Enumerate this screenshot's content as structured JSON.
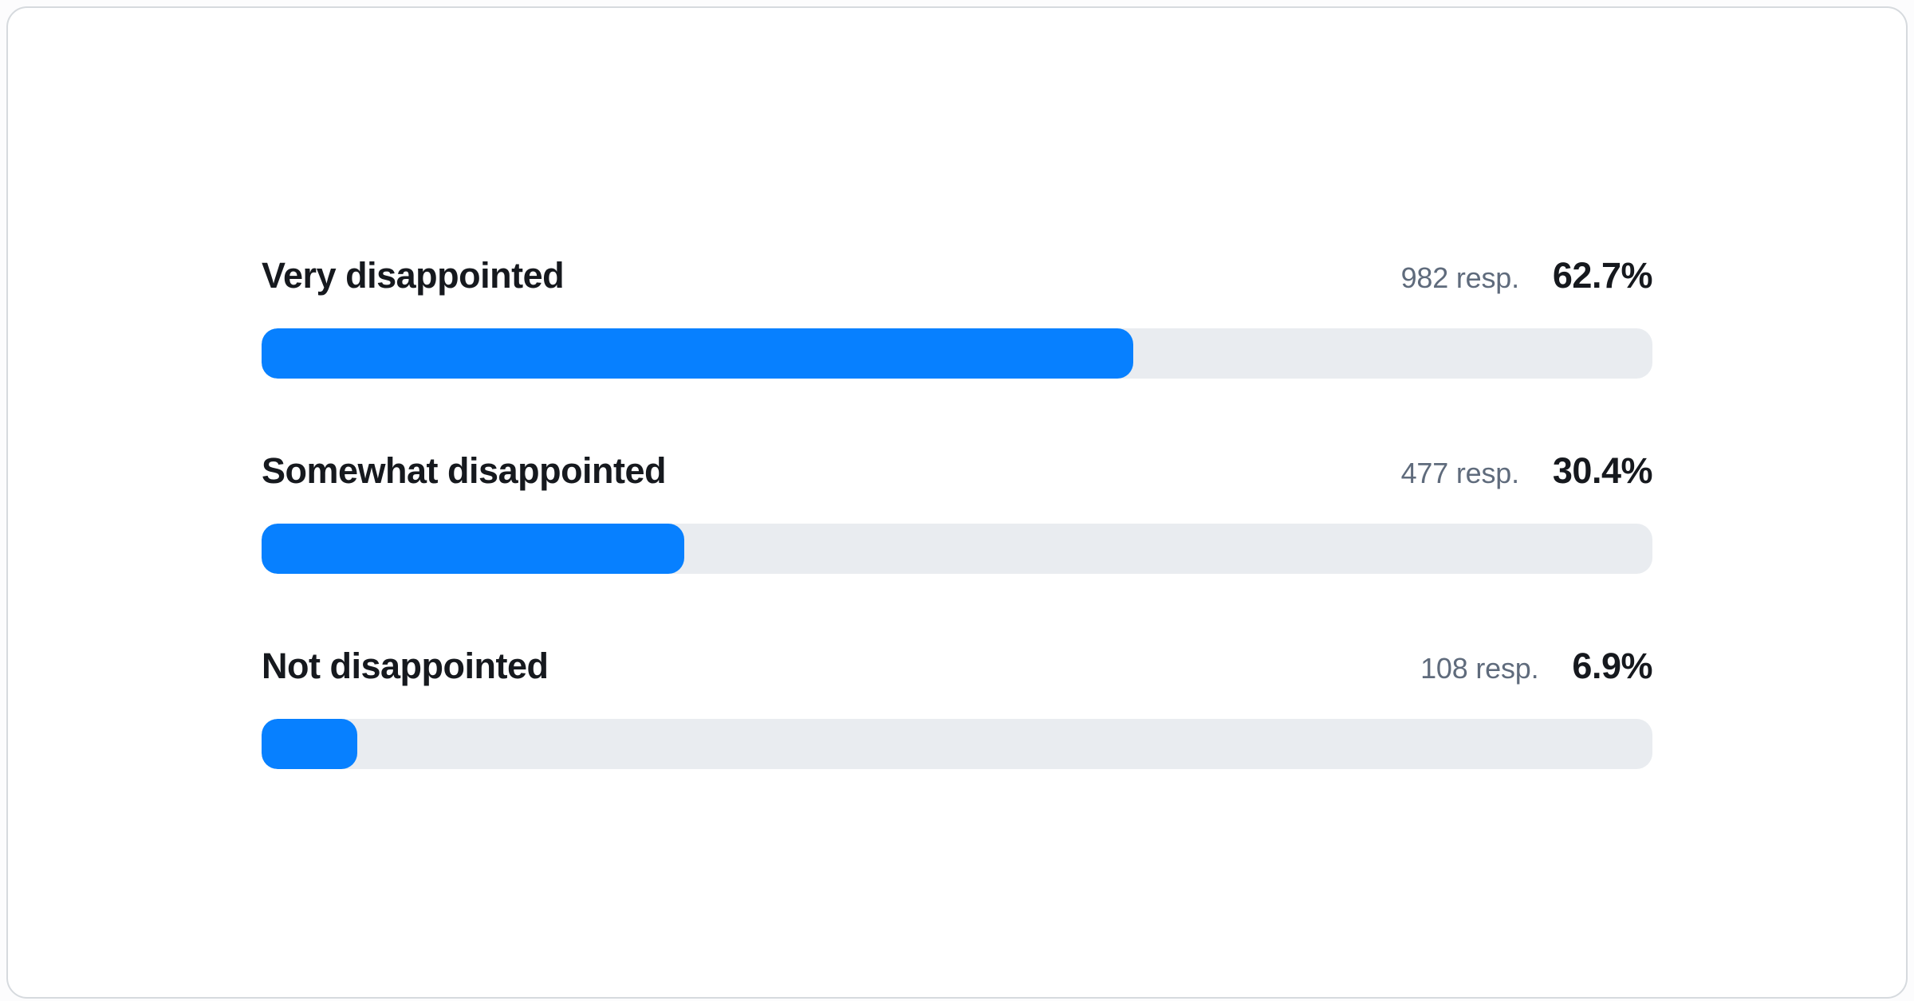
{
  "colors": {
    "accent": "#0780ff",
    "track": "#e9ecf0",
    "label_text": "#16191e",
    "muted_text": "#5f6b7c",
    "card_border": "#d6dade",
    "card_bg": "#ffffff"
  },
  "chart_data": {
    "type": "bar",
    "orientation": "horizontal",
    "title": "",
    "xlabel": "",
    "ylabel": "",
    "xlim": [
      0,
      100
    ],
    "unit": "percent",
    "grid": false,
    "legend": false,
    "categories": [
      "Very disappointed",
      "Somewhat disappointed",
      "Not disappointed"
    ],
    "values": [
      62.7,
      30.4,
      6.9
    ],
    "responses": [
      982,
      477,
      108
    ],
    "rows": [
      {
        "label": "Very disappointed",
        "responses": 982,
        "responses_label": "982 resp.",
        "percent": 62.7,
        "percent_label": "62.7%"
      },
      {
        "label": "Somewhat disappointed",
        "responses": 477,
        "responses_label": "477 resp.",
        "percent": 30.4,
        "percent_label": "30.4%"
      },
      {
        "label": "Not disappointed",
        "responses": 108,
        "responses_label": "108 resp.",
        "percent": 6.9,
        "percent_label": "6.9%"
      }
    ]
  }
}
